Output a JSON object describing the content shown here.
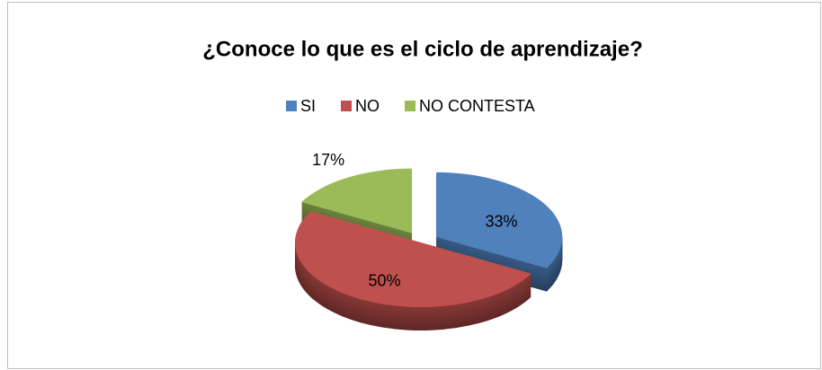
{
  "chart_data": {
    "type": "pie",
    "title": "¿Conoce lo que es el ciclo de aprendizaje?",
    "categories": [
      "SI",
      "NO",
      "NO CONTESTA"
    ],
    "values": [
      33,
      50,
      17
    ],
    "value_labels": [
      "33%",
      "50%",
      "17%"
    ],
    "colors": [
      "#4f81bd",
      "#c0504d",
      "#9bbb59"
    ],
    "legend": "top"
  }
}
